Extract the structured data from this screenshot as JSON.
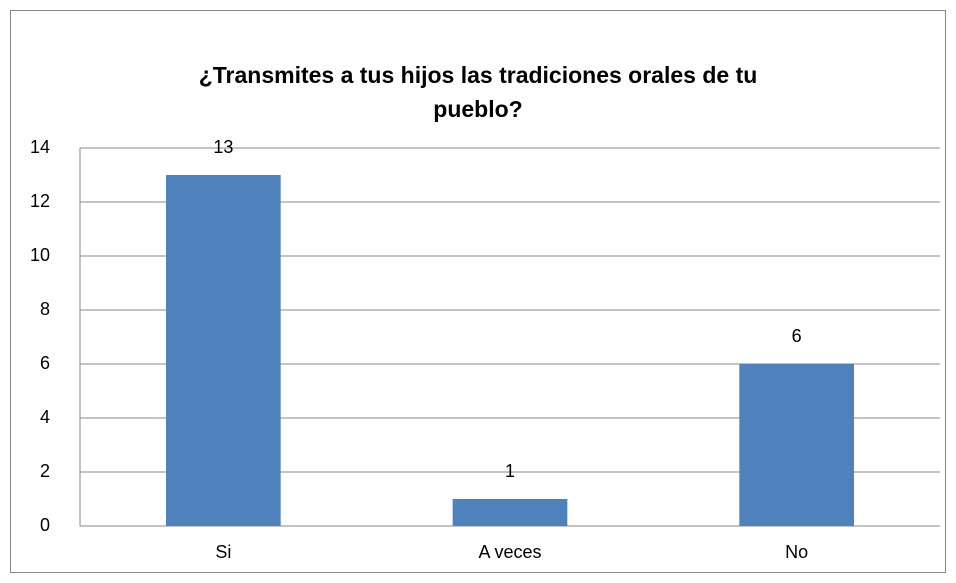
{
  "chart_data": {
    "type": "bar",
    "title": "¿Transmites a tus hijos las tradiciones orales de tu\npueblo?",
    "categories": [
      "Si",
      "A veces",
      "No"
    ],
    "values": [
      13,
      1,
      6
    ],
    "color": "#4f81bd",
    "ylim": [
      0,
      14
    ],
    "yticks": [
      0,
      2,
      4,
      6,
      8,
      10,
      12,
      14
    ],
    "grid": true
  }
}
